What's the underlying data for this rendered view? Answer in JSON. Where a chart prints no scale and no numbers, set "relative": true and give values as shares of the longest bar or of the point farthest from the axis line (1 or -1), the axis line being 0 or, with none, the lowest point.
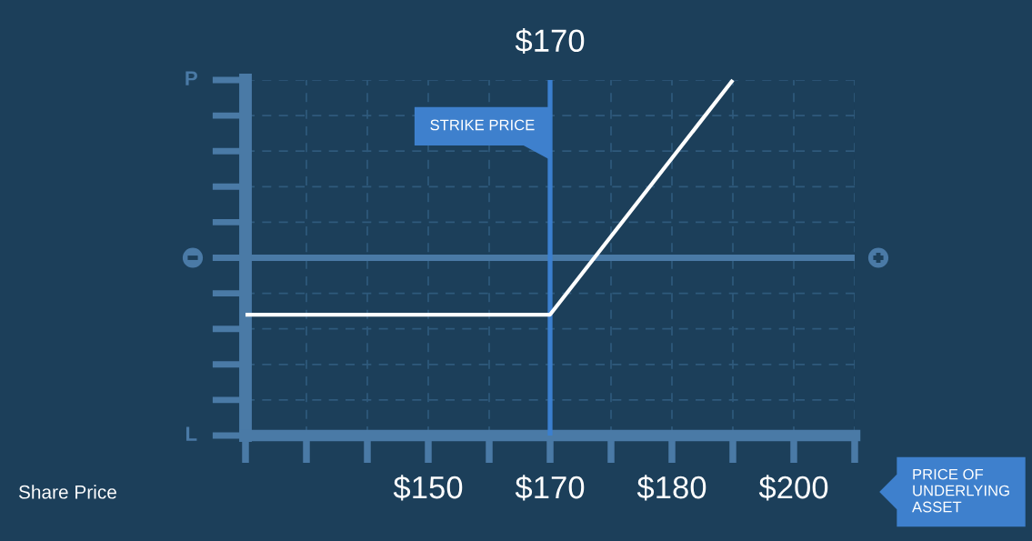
{
  "chart_data": {
    "type": "line",
    "relative": true,
    "categories": [
      null,
      null,
      null,
      "$150",
      null,
      "$170",
      null,
      "$180",
      null,
      "$200",
      null
    ],
    "series": [
      {
        "color": "#ffffff",
        "values": [
          -0.32,
          -0.32,
          -0.32,
          -0.32,
          -0.32,
          -0.32,
          0.12,
          0.56,
          1,
          null,
          null
        ]
      }
    ],
    "line_style": "solid",
    "grid": true,
    "ref_lines": [
      {
        "axis": "x",
        "value": "$170",
        "label": "$170",
        "color": "#3b7fcf"
      },
      {
        "axis": "y",
        "value": 0,
        "color": "#4a7aa6"
      }
    ],
    "annotations": [
      {
        "text": "STRIKE PRICE",
        "x": "$170",
        "y": 0.74
      },
      "P",
      "L",
      "Share Price",
      "PRICE OF\nUNDERLYING\nASSET"
    ]
  }
}
